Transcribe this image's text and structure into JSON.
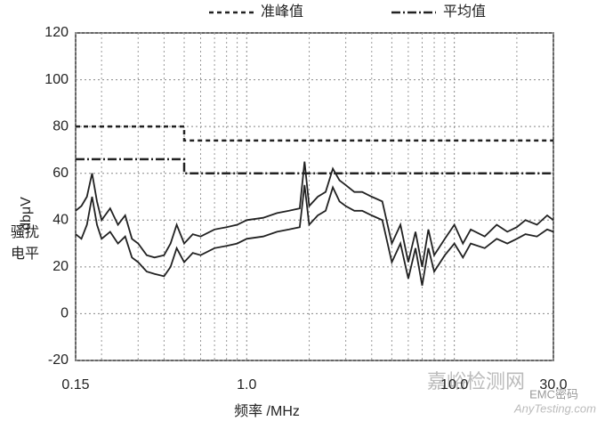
{
  "chart_data": {
    "type": "line",
    "legend": [
      "准峰值",
      "平均值"
    ],
    "x_label": "频率 /MHz",
    "y_label": "dbμV",
    "y_label_lines": [
      "骚扰",
      "电平"
    ],
    "watermark": [
      "嘉峪检测网",
      "EMC密码",
      "AnyTesting.com"
    ],
    "xscale": "log",
    "xlim": [
      0.15,
      30
    ],
    "xticks": [
      0.15,
      {
        "value": 1,
        "label": "1.0"
      },
      {
        "value": 10,
        "label": "10.0"
      },
      {
        "value": 30,
        "label": "30.0"
      }
    ],
    "x_minor_grid": [
      0.2,
      0.3,
      0.4,
      0.5,
      0.6,
      0.7,
      0.8,
      0.9,
      2,
      3,
      4,
      5,
      6,
      7,
      8,
      9,
      20
    ],
    "ylim": [
      -20,
      120
    ],
    "yticks": [
      -20,
      0,
      20,
      40,
      60,
      80,
      100,
      120
    ],
    "grid": true,
    "limits": [
      {
        "name": "准峰值",
        "style": "dashed",
        "color": "#222222",
        "x": [
          0.15,
          0.5,
          0.5,
          30
        ],
        "values": [
          80,
          80,
          74,
          74
        ]
      },
      {
        "name": "平均值",
        "style": "dashdot",
        "color": "#222222",
        "x": [
          0.15,
          0.5,
          0.5,
          30
        ],
        "values": [
          66,
          66,
          60,
          60
        ]
      }
    ],
    "x": [
      0.15,
      0.16,
      0.17,
      0.18,
      0.19,
      0.2,
      0.22,
      0.24,
      0.26,
      0.28,
      0.3,
      0.33,
      0.36,
      0.4,
      0.43,
      0.46,
      0.5,
      0.55,
      0.6,
      0.7,
      0.8,
      0.9,
      1.0,
      1.2,
      1.4,
      1.6,
      1.8,
      1.9,
      2.0,
      2.2,
      2.4,
      2.6,
      2.8,
      3.0,
      3.3,
      3.6,
      4.0,
      4.5,
      5.0,
      5.5,
      6.0,
      6.5,
      7.0,
      7.5,
      8.0,
      9.0,
      10,
      11,
      12,
      14,
      16,
      18,
      20,
      22,
      25,
      28,
      30
    ],
    "series": [
      {
        "color": "#222222",
        "values": [
          44,
          46,
          50,
          60,
          48,
          40,
          45,
          38,
          42,
          32,
          30,
          25,
          24,
          25,
          30,
          38,
          30,
          34,
          33,
          36,
          37,
          38,
          40,
          41,
          43,
          44,
          45,
          65,
          46,
          50,
          52,
          62,
          57,
          55,
          52,
          52,
          50,
          48,
          30,
          38,
          22,
          35,
          20,
          36,
          25,
          32,
          38,
          30,
          36,
          33,
          38,
          35,
          37,
          40,
          38,
          42,
          40
        ]
      },
      {
        "color": "#222222",
        "values": [
          34,
          32,
          38,
          50,
          38,
          32,
          35,
          30,
          33,
          24,
          22,
          18,
          17,
          16,
          20,
          28,
          22,
          26,
          25,
          28,
          29,
          30,
          32,
          33,
          35,
          36,
          37,
          55,
          38,
          42,
          44,
          54,
          48,
          46,
          44,
          44,
          42,
          40,
          22,
          30,
          15,
          28,
          12,
          28,
          18,
          25,
          30,
          24,
          30,
          28,
          32,
          30,
          32,
          34,
          33,
          36,
          35
        ]
      }
    ]
  }
}
